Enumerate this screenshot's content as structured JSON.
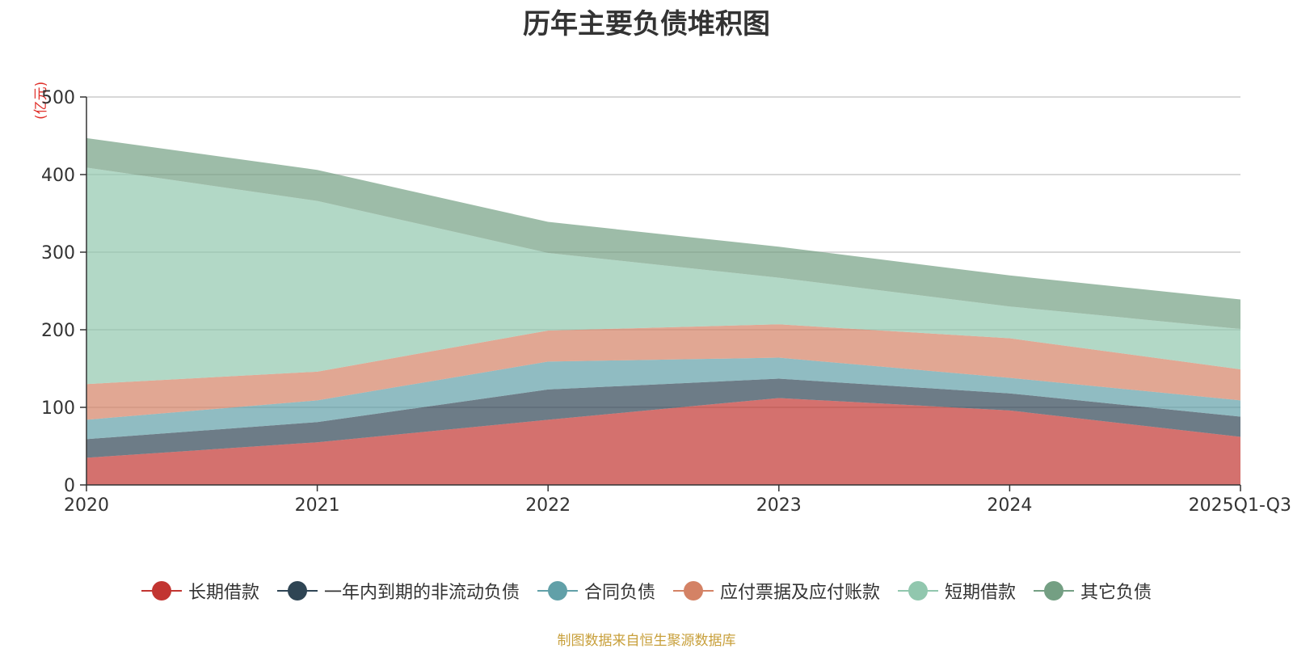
{
  "chart_data": {
    "type": "area",
    "title": "历年主要负债堆积图",
    "unit_label": "(亿元)",
    "categories": [
      "2020",
      "2021",
      "2022",
      "2023",
      "2024",
      "2025Q1-Q3"
    ],
    "ylim": [
      0,
      500
    ],
    "yticks": [
      "0",
      "100",
      "200",
      "300",
      "400",
      "500"
    ],
    "stacked": true,
    "grid": true,
    "legend_position": "bottom",
    "series": [
      {
        "name": "长期借款",
        "color": "#c23531",
        "values": [
          35,
          55,
          84,
          112,
          96,
          62
        ]
      },
      {
        "name": "一年内到期的非流动负债",
        "color": "#2f4554",
        "values": [
          24,
          26,
          39,
          25,
          22,
          26
        ]
      },
      {
        "name": "合同负债",
        "color": "#61a0a8",
        "values": [
          25,
          28,
          36,
          27,
          20,
          21
        ]
      },
      {
        "name": "应付票据及应付账款",
        "color": "#d48265",
        "values": [
          46,
          37,
          40,
          43,
          51,
          40
        ]
      },
      {
        "name": "短期借款",
        "color": "#91c7ae",
        "values": [
          279,
          220,
          100,
          60,
          41,
          52
        ]
      },
      {
        "name": "其它负债",
        "color": "#749f83",
        "values": [
          38,
          40,
          40,
          40,
          40,
          38
        ]
      }
    ]
  },
  "source_note": "制图数据来自恒生聚源数据库"
}
